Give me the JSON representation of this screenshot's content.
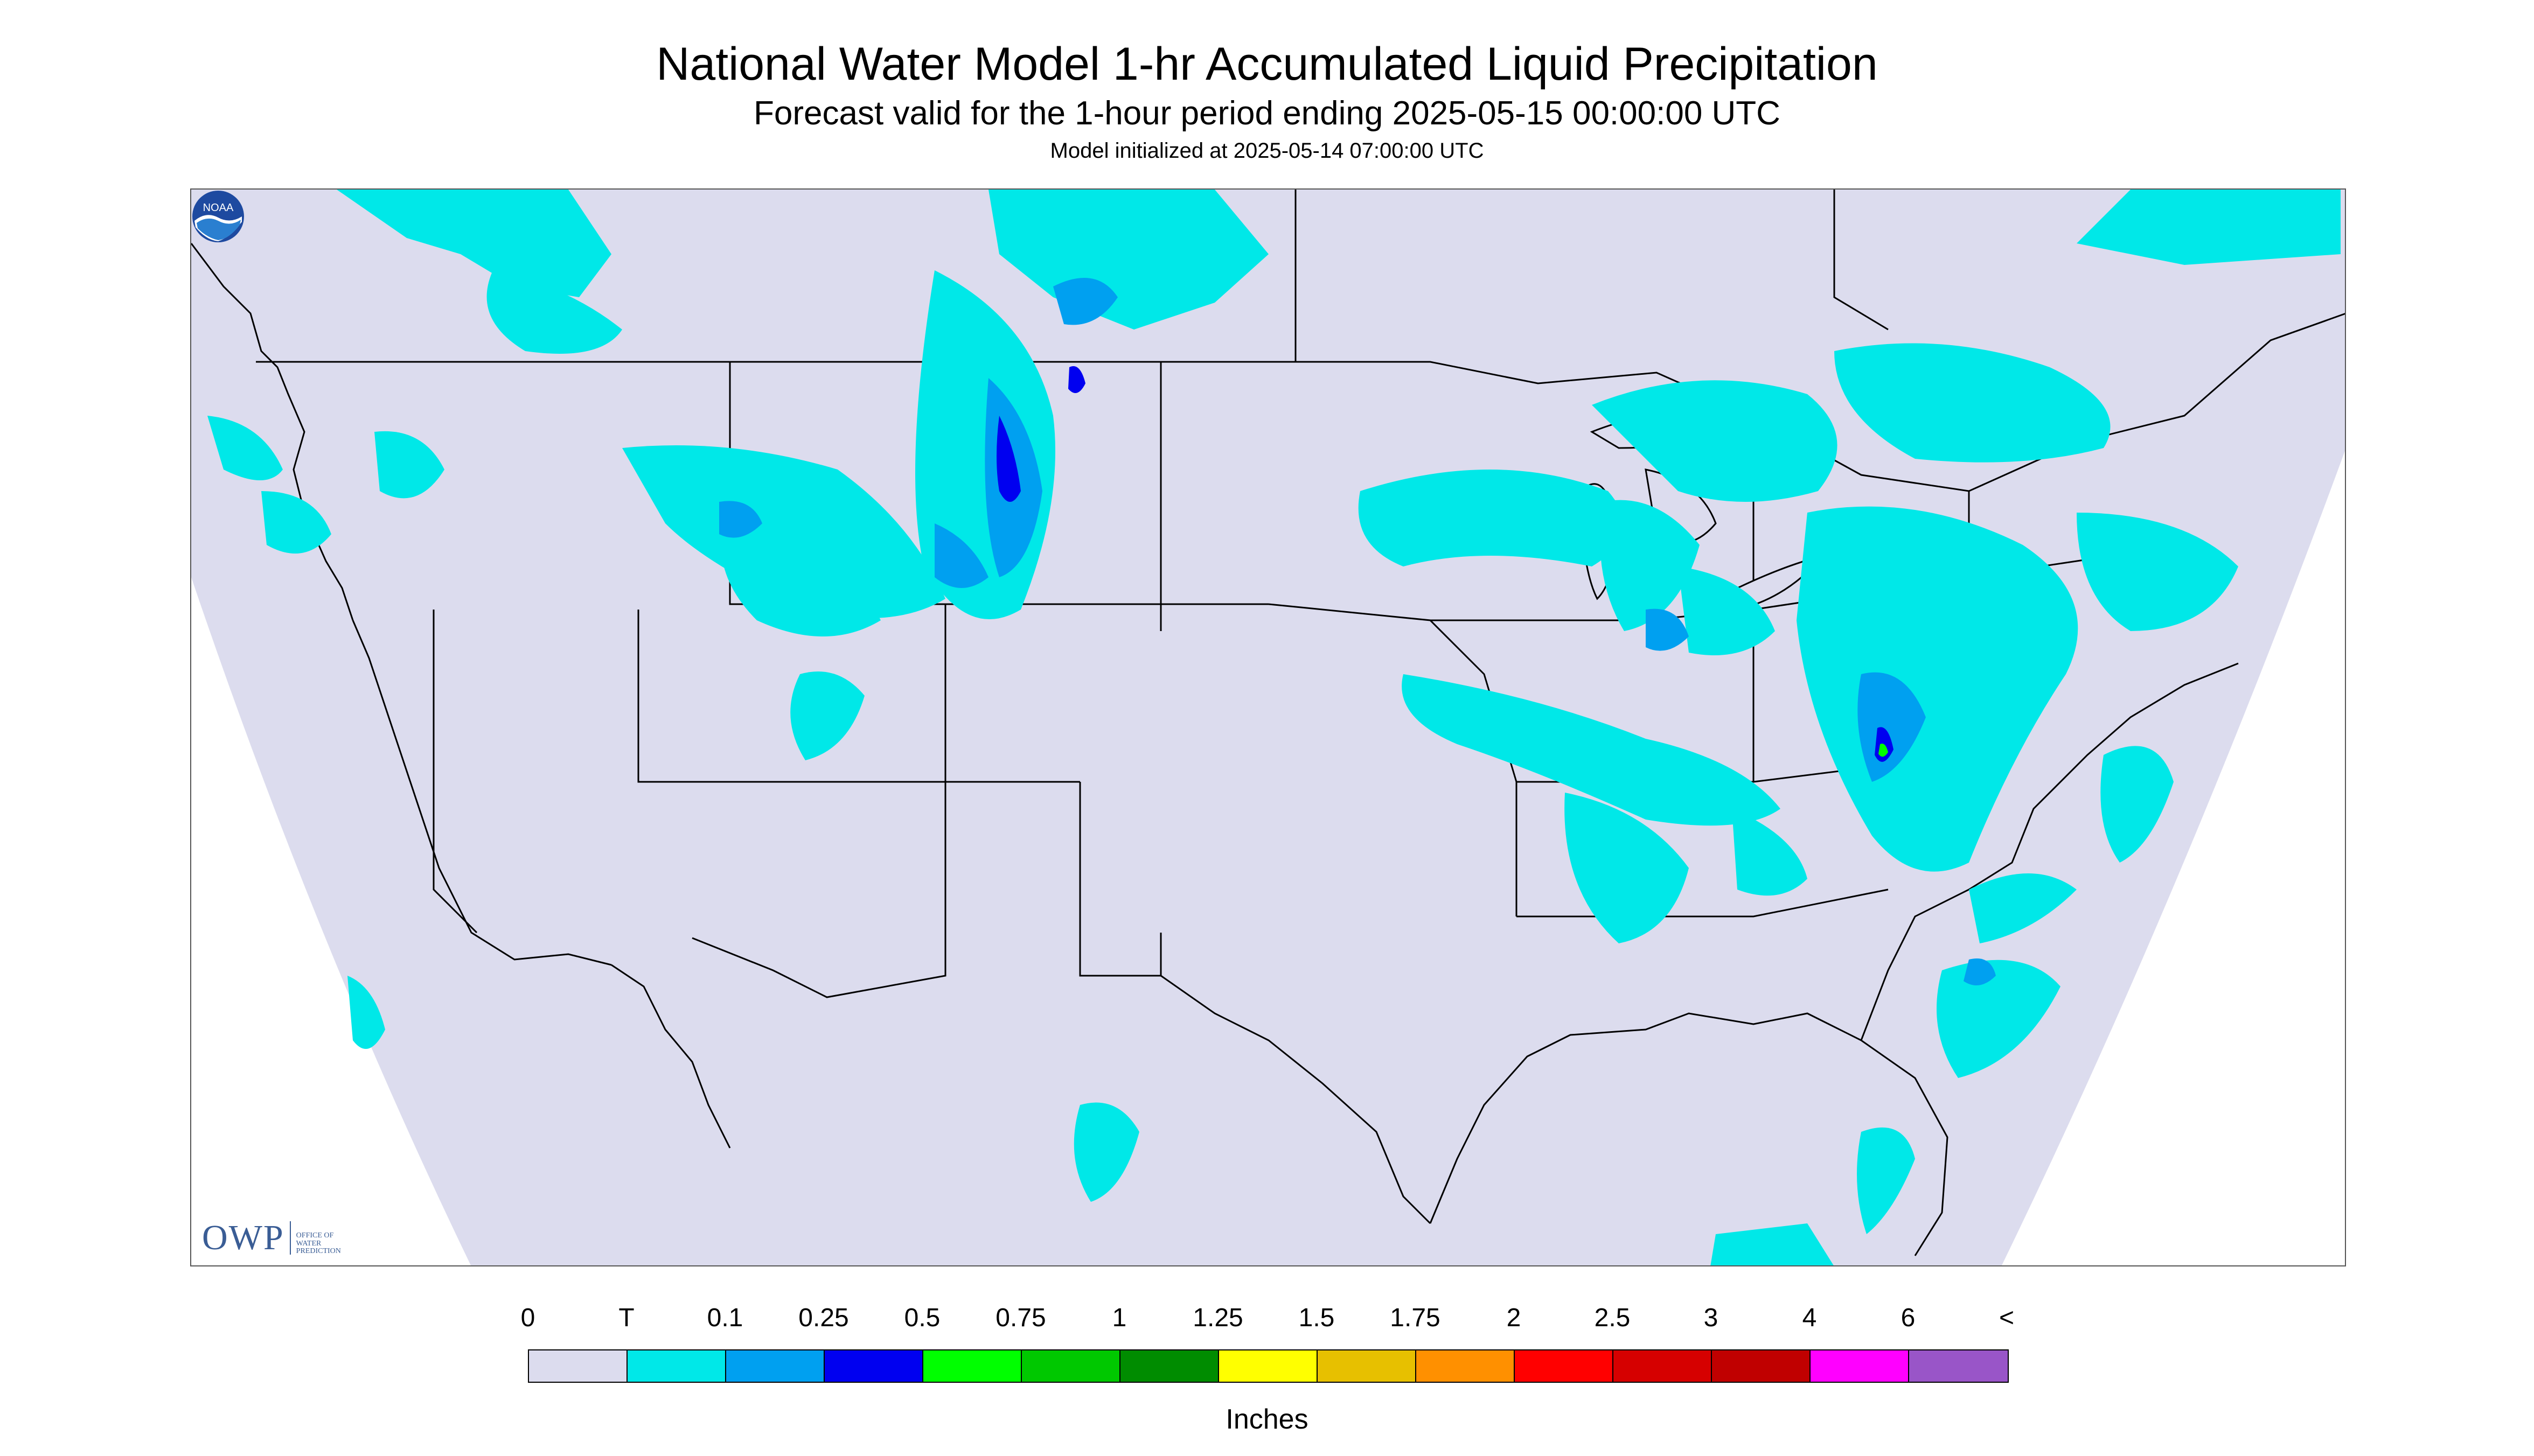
{
  "header": {
    "title": "National Water Model 1-hr Accumulated Liquid Precipitation",
    "subtitle": "Forecast valid for the 1-hour period ending 2025-05-15 00:00:00 UTC",
    "init": "Model initialized at 2025-05-14 07:00:00 UTC"
  },
  "map": {
    "background_color": "#dcdcee",
    "outside_color": "#ffffff",
    "border_color": "#333333",
    "region": "CONUS"
  },
  "logos": {
    "owp_mark": "OWP",
    "owp_lines": [
      "OFFICE OF",
      "WATER",
      "PREDICTION"
    ],
    "noaa_text": "NOAA"
  },
  "legend": {
    "labels": [
      "0",
      "T",
      "0.1",
      "0.25",
      "0.5",
      "0.75",
      "1",
      "1.25",
      "1.5",
      "1.75",
      "2",
      "2.5",
      "3",
      "4",
      "6",
      "<"
    ],
    "colors": [
      "#dcdcee",
      "#00e8e8",
      "#00a0f0",
      "#0000f0",
      "#00ff00",
      "#00c800",
      "#008c00",
      "#ffff00",
      "#e7c000",
      "#ff9000",
      "#ff0000",
      "#d60000",
      "#c00000",
      "#ff00ff",
      "#9955c8"
    ],
    "units": "Inches"
  },
  "precip_palette": {
    "trace": "#00e8e8",
    "light": "#00a0f0",
    "moderate": "#0000f0",
    "heavy": "#00ff00"
  }
}
